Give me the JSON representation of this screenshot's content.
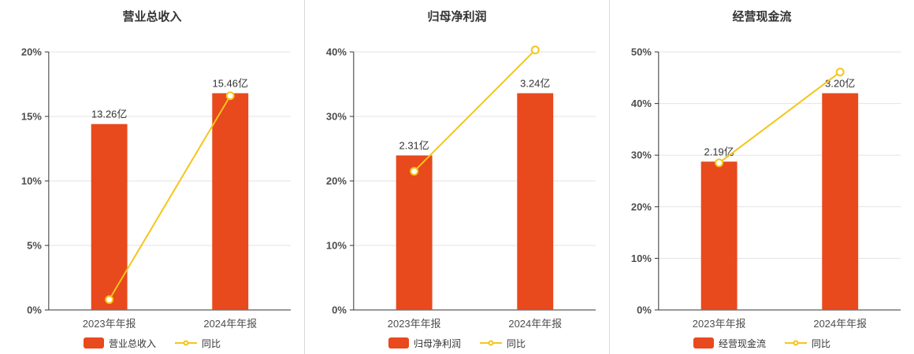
{
  "colors": {
    "bar": "#e8491d",
    "line": "#f5c518",
    "marker_fill": "#ffffff",
    "axis": "#333333",
    "grid": "#e3e3e3",
    "divider": "#d9d9d9",
    "text": "#4d4d4d",
    "title": "#333333",
    "label": "#333333"
  },
  "chart_data": [
    {
      "type": "bar",
      "title": "营业总收入",
      "categories": [
        "2023年年报",
        "2024年年报"
      ],
      "series": [
        {
          "name": "营业总收入",
          "kind": "bar",
          "unit": "亿",
          "values": [
            13.26,
            15.46
          ],
          "labels": [
            "13.26亿",
            "15.46亿"
          ]
        },
        {
          "name": "同比",
          "kind": "line",
          "unit": "%",
          "values": [
            0.8,
            16.6
          ]
        }
      ],
      "y_axis": {
        "min": 0,
        "max": 20,
        "step": 5,
        "unit": "%",
        "tick_labels": [
          "0%",
          "5%",
          "10%",
          "15%",
          "20%"
        ]
      },
      "legend": {
        "position": "bottom",
        "items": [
          "营业总收入",
          "同比"
        ]
      },
      "grid": true
    },
    {
      "type": "bar",
      "title": "归母净利润",
      "categories": [
        "2023年年报",
        "2024年年报"
      ],
      "series": [
        {
          "name": "归母净利润",
          "kind": "bar",
          "unit": "亿",
          "values": [
            2.31,
            3.24
          ],
          "labels": [
            "2.31亿",
            "3.24亿"
          ]
        },
        {
          "name": "同比",
          "kind": "line",
          "unit": "%",
          "values": [
            21.5,
            40.3
          ]
        }
      ],
      "y_axis": {
        "min": 0,
        "max": 40,
        "step": 10,
        "unit": "%",
        "tick_labels": [
          "0%",
          "10%",
          "20%",
          "30%",
          "40%"
        ]
      },
      "legend": {
        "position": "bottom",
        "items": [
          "归母净利润",
          "同比"
        ]
      },
      "grid": true
    },
    {
      "type": "bar",
      "title": "经营现金流",
      "categories": [
        "2023年年报",
        "2024年年报"
      ],
      "series": [
        {
          "name": "经营现金流",
          "kind": "bar",
          "unit": "亿",
          "values": [
            2.19,
            3.2
          ],
          "labels": [
            "2.19亿",
            "3.20亿"
          ]
        },
        {
          "name": "同比",
          "kind": "line",
          "unit": "%",
          "values": [
            28.5,
            46.1
          ]
        }
      ],
      "y_axis": {
        "min": 0,
        "max": 50,
        "step": 10,
        "unit": "%",
        "tick_labels": [
          "0%",
          "10%",
          "20%",
          "30%",
          "40%",
          "50%"
        ]
      },
      "legend": {
        "position": "bottom",
        "items": [
          "经营现金流",
          "同比"
        ]
      },
      "grid": true
    }
  ]
}
